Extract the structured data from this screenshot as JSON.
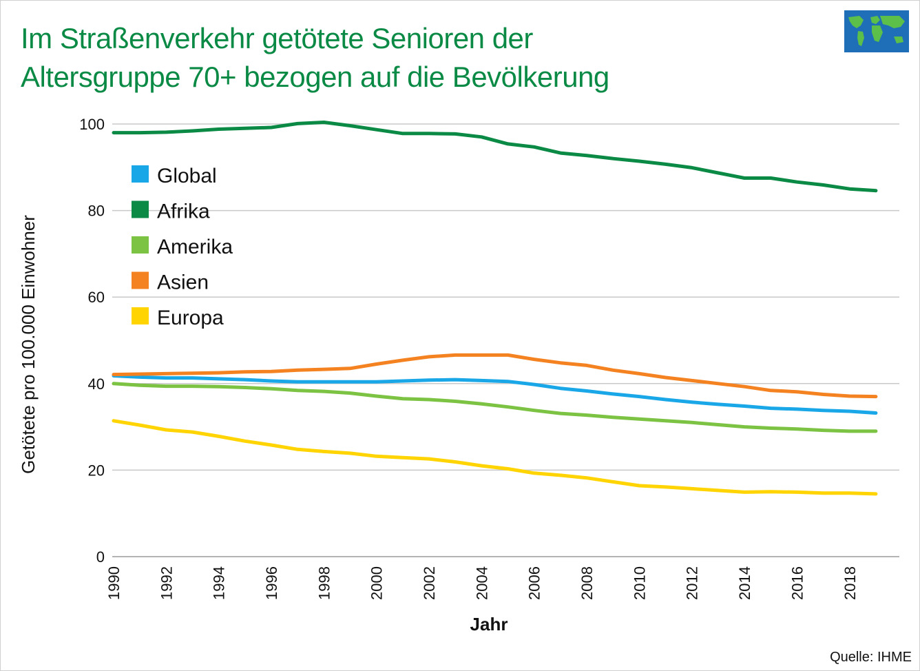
{
  "title": {
    "line1": "Im Straßenverkehr getötete Senioren der",
    "line2": "Altersgruppe 70+ bezogen auf die Bevölkerung"
  },
  "source": "Quelle: IHME",
  "colors": {
    "title": "#0a8a45",
    "grid": "#c8c8c8"
  },
  "chart_data": {
    "type": "line",
    "title": "Im Straßenverkehr getötete Senioren der Altersgruppe 70+ bezogen auf die Bevölkerung",
    "xlabel": "Jahr",
    "ylabel": "Getötete pro 100.000 Einwohner",
    "xlim": [
      1990,
      2019
    ],
    "ylim": [
      0,
      100
    ],
    "x_ticks": [
      1990,
      1992,
      1994,
      1996,
      1998,
      2000,
      2002,
      2004,
      2006,
      2008,
      2010,
      2012,
      2014,
      2016,
      2018
    ],
    "y_ticks": [
      0,
      20,
      40,
      60,
      80,
      100
    ],
    "grid": true,
    "legend_position": "top-left",
    "x": [
      1990,
      1991,
      1992,
      1993,
      1994,
      1995,
      1996,
      1997,
      1998,
      1999,
      2000,
      2001,
      2002,
      2003,
      2004,
      2005,
      2006,
      2007,
      2008,
      2009,
      2010,
      2011,
      2012,
      2013,
      2014,
      2015,
      2016,
      2017,
      2018,
      2019
    ],
    "series": [
      {
        "name": "Global",
        "color": "#1aa7e8",
        "values": [
          41.8,
          41.5,
          41.3,
          41.3,
          41.1,
          40.9,
          40.6,
          40.4,
          40.4,
          40.4,
          40.4,
          40.6,
          40.8,
          40.9,
          40.7,
          40.5,
          39.8,
          38.9,
          38.3,
          37.6,
          37.0,
          36.3,
          35.7,
          35.2,
          34.8,
          34.3,
          34.1,
          33.8,
          33.6,
          33.2
        ]
      },
      {
        "name": "Afrika",
        "color": "#0a8a45",
        "values": [
          98.0,
          98.0,
          98.1,
          98.4,
          98.8,
          99.0,
          99.2,
          100.1,
          100.4,
          99.6,
          98.7,
          97.8,
          97.8,
          97.7,
          97.0,
          95.4,
          94.7,
          93.3,
          92.7,
          92.0,
          91.4,
          90.7,
          89.9,
          88.7,
          87.5,
          87.5,
          86.6,
          85.9,
          85.0,
          84.6
        ]
      },
      {
        "name": "Amerika",
        "color": "#7cc243",
        "values": [
          40.0,
          39.6,
          39.4,
          39.4,
          39.3,
          39.1,
          38.8,
          38.4,
          38.2,
          37.8,
          37.1,
          36.5,
          36.3,
          35.9,
          35.3,
          34.6,
          33.8,
          33.1,
          32.7,
          32.2,
          31.8,
          31.4,
          31.0,
          30.5,
          30.0,
          29.7,
          29.5,
          29.2,
          29.0,
          29.0
        ]
      },
      {
        "name": "Asien",
        "color": "#f58220",
        "values": [
          42.1,
          42.2,
          42.3,
          42.4,
          42.5,
          42.7,
          42.8,
          43.1,
          43.3,
          43.5,
          44.5,
          45.4,
          46.2,
          46.6,
          46.6,
          46.6,
          45.6,
          44.8,
          44.2,
          43.1,
          42.3,
          41.4,
          40.7,
          40.0,
          39.3,
          38.4,
          38.1,
          37.5,
          37.1,
          37.0
        ]
      },
      {
        "name": "Europa",
        "color": "#ffd400",
        "values": [
          31.4,
          30.4,
          29.3,
          28.8,
          27.8,
          26.7,
          25.8,
          24.8,
          24.3,
          23.9,
          23.2,
          22.9,
          22.6,
          21.9,
          21.0,
          20.3,
          19.3,
          18.8,
          18.2,
          17.3,
          16.4,
          16.1,
          15.7,
          15.3,
          14.9,
          15.0,
          14.9,
          14.7,
          14.7,
          14.5
        ]
      }
    ]
  }
}
